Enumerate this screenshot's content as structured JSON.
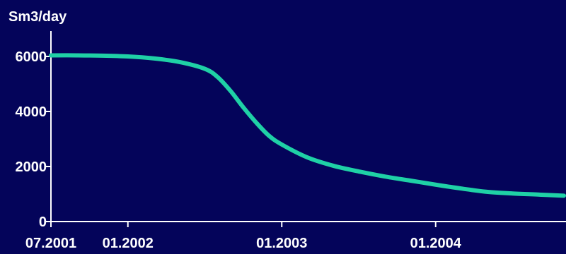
{
  "chart_data": {
    "type": "line",
    "ylabel": "Sm3/day",
    "ylim": [
      0,
      6000
    ],
    "xlim": [
      "2001-07",
      "2004-11"
    ],
    "yticks": [
      0,
      2000,
      4000,
      6000
    ],
    "ytick_labels": [
      "0",
      "2000",
      "4000",
      "6000"
    ],
    "xticks": [
      "2001-07",
      "2002-01",
      "2003-01",
      "2004-01"
    ],
    "xtick_labels": [
      "07.2001",
      "01.2002",
      "01.2003",
      "01.2004"
    ],
    "grid": false,
    "series": [
      {
        "color": "#1fd1a6",
        "x": [
          "2001-07",
          "2001-09",
          "2001-11",
          "2002-01",
          "2002-03",
          "2002-05",
          "2002-07",
          "2002-08",
          "2002-09",
          "2002-10",
          "2002-11",
          "2002-12",
          "2003-01",
          "2003-03",
          "2003-05",
          "2003-07",
          "2003-09",
          "2003-11",
          "2004-01",
          "2004-03",
          "2004-05",
          "2004-07",
          "2004-09",
          "2004-11"
        ],
        "values": [
          6040,
          6040,
          6030,
          6000,
          5930,
          5800,
          5550,
          5250,
          4750,
          4150,
          3600,
          3120,
          2800,
          2330,
          2030,
          1820,
          1640,
          1490,
          1340,
          1200,
          1080,
          1020,
          980,
          940
        ]
      }
    ]
  },
  "colors": {
    "background": "#04045a",
    "axis": "#ffffff",
    "line": "#1fd1a6",
    "text": "#ffffff"
  }
}
